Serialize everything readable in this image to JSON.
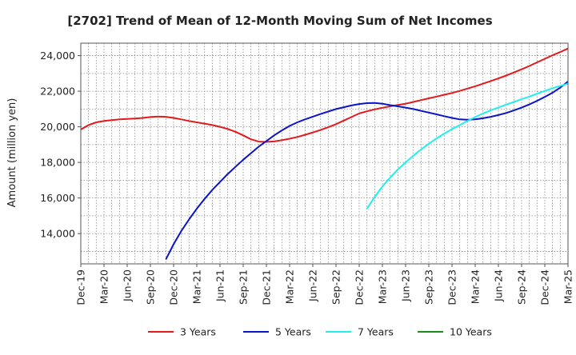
{
  "chart_data": {
    "type": "line",
    "title": "[2702]  Trend of Mean of 12-Month Moving Sum of Net Incomes",
    "ylabel": "Amount (million yen)",
    "xlabel": "",
    "x_ticks": [
      "Dec-19",
      "Mar-20",
      "Jun-20",
      "Sep-20",
      "Dec-20",
      "Mar-21",
      "Jun-21",
      "Sep-21",
      "Dec-21",
      "Mar-22",
      "Jun-22",
      "Sep-22",
      "Dec-22",
      "Mar-23",
      "Jun-23",
      "Sep-23",
      "Dec-23",
      "Mar-24",
      "Jun-24",
      "Sep-24",
      "Dec-24",
      "Mar-25"
    ],
    "y_ticks": [
      14000,
      16000,
      18000,
      20000,
      22000,
      24000
    ],
    "y_tick_labels": [
      "14,000",
      "16,000",
      "18,000",
      "20,000",
      "22,000",
      "24,000"
    ],
    "ylim": [
      12300,
      24700
    ],
    "grid": true,
    "legend_position": "bottom",
    "series": [
      {
        "name": "3 Years",
        "color": "#e31a1c",
        "points": [
          [
            "Dec-19",
            19850
          ],
          [
            "Jan-20",
            20100
          ],
          [
            "Feb-20",
            20250
          ],
          [
            "Mar-20",
            20330
          ],
          [
            "Apr-20",
            20380
          ],
          [
            "May-20",
            20420
          ],
          [
            "Jun-20",
            20440
          ],
          [
            "Jul-20",
            20470
          ],
          [
            "Aug-20",
            20500
          ],
          [
            "Sep-20",
            20550
          ],
          [
            "Oct-20",
            20580
          ],
          [
            "Nov-20",
            20560
          ],
          [
            "Dec-20",
            20500
          ],
          [
            "Jan-21",
            20420
          ],
          [
            "Feb-21",
            20330
          ],
          [
            "Mar-21",
            20250
          ],
          [
            "Apr-21",
            20180
          ],
          [
            "May-21",
            20100
          ],
          [
            "Jun-21",
            20000
          ],
          [
            "Jul-21",
            19880
          ],
          [
            "Aug-21",
            19720
          ],
          [
            "Sep-21",
            19520
          ],
          [
            "Oct-21",
            19300
          ],
          [
            "Nov-21",
            19170
          ],
          [
            "Dec-21",
            19150
          ],
          [
            "Jan-22",
            19180
          ],
          [
            "Feb-22",
            19250
          ],
          [
            "Mar-22",
            19330
          ],
          [
            "Apr-22",
            19430
          ],
          [
            "May-22",
            19550
          ],
          [
            "Jun-22",
            19680
          ],
          [
            "Jul-22",
            19820
          ],
          [
            "Aug-22",
            19980
          ],
          [
            "Sep-22",
            20150
          ],
          [
            "Oct-22",
            20350
          ],
          [
            "Nov-22",
            20550
          ],
          [
            "Dec-22",
            20750
          ],
          [
            "Jan-23",
            20870
          ],
          [
            "Feb-23",
            20980
          ],
          [
            "Mar-23",
            21070
          ],
          [
            "Apr-23",
            21150
          ],
          [
            "May-23",
            21230
          ],
          [
            "Jun-23",
            21300
          ],
          [
            "Jul-23",
            21400
          ],
          [
            "Aug-23",
            21500
          ],
          [
            "Sep-23",
            21600
          ],
          [
            "Oct-23",
            21700
          ],
          [
            "Nov-23",
            21800
          ],
          [
            "Dec-23",
            21900
          ],
          [
            "Jan-24",
            22020
          ],
          [
            "Feb-24",
            22150
          ],
          [
            "Mar-24",
            22280
          ],
          [
            "Apr-24",
            22420
          ],
          [
            "May-24",
            22570
          ],
          [
            "Jun-24",
            22720
          ],
          [
            "Jul-24",
            22880
          ],
          [
            "Aug-24",
            23050
          ],
          [
            "Sep-24",
            23230
          ],
          [
            "Oct-24",
            23420
          ],
          [
            "Nov-24",
            23620
          ],
          [
            "Dec-24",
            23820
          ],
          [
            "Jan-25",
            24020
          ],
          [
            "Feb-25",
            24200
          ],
          [
            "Mar-25",
            24400
          ]
        ]
      },
      {
        "name": "5 Years",
        "color": "#0a14c8",
        "points": [
          [
            "Nov-20",
            12550
          ],
          [
            "Dec-20",
            13400
          ],
          [
            "Jan-21",
            14150
          ],
          [
            "Feb-21",
            14800
          ],
          [
            "Mar-21",
            15400
          ],
          [
            "Apr-21",
            15950
          ],
          [
            "May-21",
            16450
          ],
          [
            "Jun-21",
            16900
          ],
          [
            "Jul-21",
            17350
          ],
          [
            "Aug-21",
            17750
          ],
          [
            "Sep-21",
            18150
          ],
          [
            "Oct-21",
            18520
          ],
          [
            "Nov-21",
            18880
          ],
          [
            "Dec-21",
            19200
          ],
          [
            "Jan-22",
            19520
          ],
          [
            "Feb-22",
            19800
          ],
          [
            "Mar-22",
            20050
          ],
          [
            "Apr-22",
            20250
          ],
          [
            "May-22",
            20420
          ],
          [
            "Jun-22",
            20570
          ],
          [
            "Jul-22",
            20720
          ],
          [
            "Aug-22",
            20860
          ],
          [
            "Sep-22",
            21000
          ],
          [
            "Oct-22",
            21100
          ],
          [
            "Nov-22",
            21200
          ],
          [
            "Dec-22",
            21280
          ],
          [
            "Jan-23",
            21330
          ],
          [
            "Feb-23",
            21340
          ],
          [
            "Mar-23",
            21300
          ],
          [
            "Apr-23",
            21220
          ],
          [
            "May-23",
            21150
          ],
          [
            "Jun-23",
            21080
          ],
          [
            "Jul-23",
            21000
          ],
          [
            "Aug-23",
            20900
          ],
          [
            "Sep-23",
            20800
          ],
          [
            "Oct-23",
            20700
          ],
          [
            "Nov-23",
            20600
          ],
          [
            "Dec-23",
            20500
          ],
          [
            "Jan-24",
            20420
          ],
          [
            "Feb-24",
            20400
          ],
          [
            "Mar-24",
            20420
          ],
          [
            "Apr-24",
            20480
          ],
          [
            "May-24",
            20560
          ],
          [
            "Jun-24",
            20660
          ],
          [
            "Jul-24",
            20780
          ],
          [
            "Aug-24",
            20920
          ],
          [
            "Sep-24",
            21080
          ],
          [
            "Oct-24",
            21260
          ],
          [
            "Nov-24",
            21460
          ],
          [
            "Dec-24",
            21680
          ],
          [
            "Jan-25",
            21920
          ],
          [
            "Feb-25",
            22200
          ],
          [
            "Mar-25",
            22550
          ]
        ]
      },
      {
        "name": "7 Years",
        "color": "#22eeee",
        "points": [
          [
            "Jan-23",
            15400
          ],
          [
            "Feb-23",
            16050
          ],
          [
            "Mar-23",
            16650
          ],
          [
            "Apr-23",
            17150
          ],
          [
            "May-23",
            17600
          ],
          [
            "Jun-23",
            18000
          ],
          [
            "Jul-23",
            18380
          ],
          [
            "Aug-23",
            18730
          ],
          [
            "Sep-23",
            19050
          ],
          [
            "Oct-23",
            19350
          ],
          [
            "Nov-23",
            19620
          ],
          [
            "Dec-23",
            19870
          ],
          [
            "Jan-24",
            20100
          ],
          [
            "Feb-24",
            20330
          ],
          [
            "Mar-24",
            20550
          ],
          [
            "Apr-24",
            20750
          ],
          [
            "May-24",
            20930
          ],
          [
            "Jun-24",
            21090
          ],
          [
            "Jul-24",
            21250
          ],
          [
            "Aug-24",
            21400
          ],
          [
            "Sep-24",
            21550
          ],
          [
            "Oct-24",
            21700
          ],
          [
            "Nov-24",
            21860
          ],
          [
            "Dec-24",
            22020
          ],
          [
            "Jan-25",
            22170
          ],
          [
            "Feb-25",
            22300
          ],
          [
            "Mar-25",
            22420
          ]
        ]
      },
      {
        "name": "10 Years",
        "color": "#1a8a1a",
        "points": []
      }
    ]
  }
}
